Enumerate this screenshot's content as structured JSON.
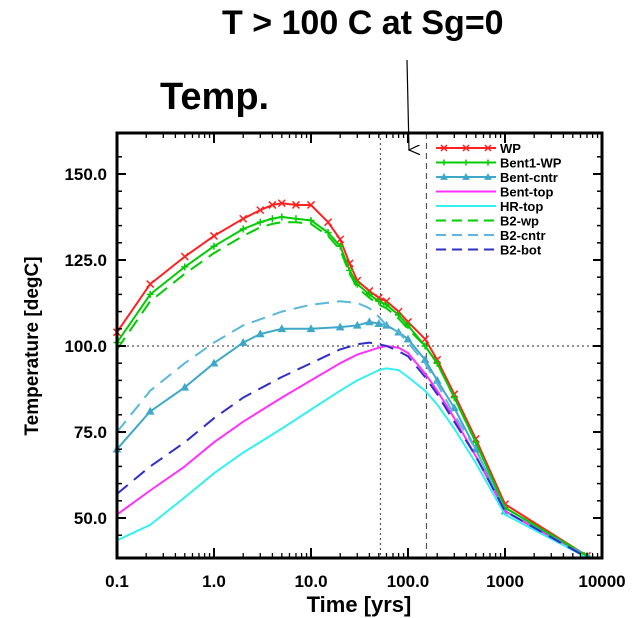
{
  "callout": "T > 100 C at Sg=0",
  "chart_data": {
    "type": "line",
    "title": "Temp.",
    "xlabel": "Time  [yrs]",
    "ylabel": "Temperature  [degC]",
    "xscale": "log",
    "xlim": [
      0.1,
      10000
    ],
    "ylim": [
      40,
      160
    ],
    "x_ticks": [
      0.1,
      1,
      10,
      100,
      1000,
      10000
    ],
    "x_tick_labels": [
      "0.1",
      "1.0",
      "10.0",
      "100.0",
      "1000",
      "10000"
    ],
    "y_ticks": [
      50,
      75,
      100,
      125,
      150
    ],
    "y_tick_labels": [
      "50.0",
      "75.0",
      "100.0",
      "125.0",
      "150.0"
    ],
    "grid": false,
    "legend_position": "top-right",
    "reference_lines": [
      {
        "orientation": "horizontal",
        "value": 100,
        "style": "dotted"
      },
      {
        "orientation": "vertical",
        "value": 52,
        "style": "dotted"
      },
      {
        "orientation": "vertical",
        "value": 155,
        "style": "dashed"
      }
    ],
    "annotation_arrow_x": 80,
    "series": [
      {
        "name": "WP",
        "color": "#ff2020",
        "dash": "solid",
        "marker": "x",
        "x": [
          0.1,
          0.22,
          0.5,
          1,
          2,
          3,
          4,
          5,
          7,
          10,
          15,
          20,
          25,
          30,
          40,
          50,
          60,
          80,
          100,
          150,
          200,
          300,
          500,
          1000,
          7000
        ],
        "y": [
          104,
          118,
          126,
          132,
          137,
          139.5,
          141,
          141.5,
          141,
          141,
          136,
          131,
          124,
          119,
          116,
          114,
          113,
          110,
          107,
          102,
          96,
          86,
          73,
          54,
          39
        ]
      },
      {
        "name": "Bent1-WP",
        "color": "#00cc00",
        "dash": "solid",
        "marker": "+",
        "x": [
          0.1,
          0.22,
          0.5,
          1,
          2,
          3,
          4,
          5,
          7,
          10,
          15,
          20,
          25,
          30,
          40,
          50,
          60,
          80,
          100,
          150,
          200,
          300,
          500,
          1000,
          7000
        ],
        "y": [
          101,
          115,
          123,
          129,
          134,
          136,
          137,
          137.5,
          137,
          136.5,
          133,
          129,
          122,
          118,
          115,
          113,
          112,
          109,
          106,
          100,
          95,
          85,
          72,
          53,
          39
        ]
      },
      {
        "name": "Bent-cntr",
        "color": "#3fa8c8",
        "dash": "solid",
        "marker": "triangle",
        "x": [
          0.1,
          0.22,
          0.5,
          1,
          2,
          3,
          5,
          10,
          20,
          30,
          40,
          50,
          60,
          80,
          100,
          150,
          200,
          300,
          500,
          1000,
          7000
        ],
        "y": [
          70,
          81,
          88,
          95,
          101,
          103.5,
          105,
          105,
          105.5,
          106,
          107,
          106.5,
          106,
          104,
          102,
          96,
          90,
          82,
          70,
          52,
          39
        ]
      },
      {
        "name": "Bent-top",
        "color": "#ff30ff",
        "dash": "solid",
        "marker": "none",
        "x": [
          0.1,
          0.22,
          0.5,
          1,
          2,
          5,
          10,
          20,
          30,
          50,
          60,
          80,
          100,
          150,
          200,
          300,
          500,
          1000,
          7000
        ],
        "y": [
          51,
          58,
          65,
          72,
          78,
          85,
          90,
          95,
          97.5,
          99.5,
          100,
          99.5,
          98,
          92,
          87,
          79,
          68,
          52,
          38.5
        ]
      },
      {
        "name": "HR-top",
        "color": "#33f0f0",
        "dash": "solid",
        "marker": "none",
        "x": [
          0.1,
          0.22,
          0.5,
          1,
          2,
          5,
          10,
          20,
          30,
          50,
          60,
          80,
          100,
          150,
          200,
          300,
          500,
          1000,
          7000
        ],
        "y": [
          43.5,
          48,
          56,
          63,
          69,
          76,
          81.5,
          87,
          90,
          93,
          93.5,
          93,
          91,
          87,
          83,
          76,
          66,
          51,
          38.5
        ]
      },
      {
        "name": "B2-wp",
        "color": "#00cc00",
        "dash": "dashed",
        "marker": "none",
        "x": [
          0.1,
          0.22,
          0.5,
          1,
          2,
          3,
          4,
          5,
          7,
          10,
          15,
          20,
          25,
          30,
          40,
          50,
          60,
          80,
          100,
          150,
          200,
          300,
          500,
          1000,
          7000
        ],
        "y": [
          99,
          113,
          121,
          127,
          132,
          134.5,
          135.5,
          136,
          136,
          135.5,
          132,
          128,
          121,
          117,
          114,
          112,
          111,
          108,
          105,
          100,
          95,
          85,
          72,
          53,
          39
        ]
      },
      {
        "name": "B2-cntr",
        "color": "#5ab8d8",
        "dash": "dashed",
        "marker": "none",
        "x": [
          0.1,
          0.22,
          0.5,
          1,
          2,
          5,
          10,
          20,
          30,
          40,
          50,
          60,
          80,
          100,
          150,
          200,
          300,
          500,
          1000,
          7000
        ],
        "y": [
          75,
          87,
          95,
          101,
          106,
          110,
          112,
          113,
          112.5,
          111,
          108.5,
          106,
          104,
          101,
          95,
          89,
          80,
          70,
          52,
          38.5
        ]
      },
      {
        "name": "B2-bot",
        "color": "#3030c8",
        "dash": "dashed",
        "marker": "none",
        "x": [
          0.1,
          0.22,
          0.5,
          1,
          2,
          5,
          10,
          20,
          30,
          40,
          50,
          60,
          80,
          100,
          150,
          200,
          300,
          500,
          1000,
          7000
        ],
        "y": [
          57,
          65,
          72,
          79,
          85,
          91,
          95,
          99,
          100.5,
          101,
          100.5,
          100,
          98.5,
          97,
          91,
          86,
          78,
          68,
          52,
          38.5
        ]
      }
    ]
  }
}
